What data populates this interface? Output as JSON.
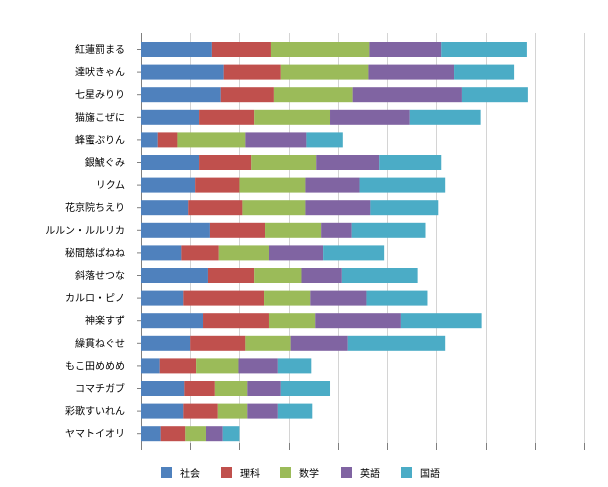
{
  "chart_data": {
    "type": "bar",
    "orientation": "horizontal",
    "stacked": true,
    "categories": [
      "紅蓮罰まる",
      "達吠きゃん",
      "七星みりり",
      "猫旛こぜに",
      "蜂蜜ぷりん",
      "銀鯱ぐみ",
      "リクム",
      "花京院ちえり",
      "ルルン・ルルリカ",
      "秘間慈ぱねね",
      "斜落せつな",
      "カルロ・ピノ",
      "神楽すず",
      "繰貫ねぐせ",
      "もこ田めめめ",
      "コマチガブ",
      "彩歌すいれん",
      "ヤマトイオリ"
    ],
    "series": [
      {
        "name": "社会",
        "color": "#4f81bd",
        "values": [
          72,
          84,
          81,
          59,
          17,
          59,
          55,
          48,
          70,
          41,
          68,
          43,
          63,
          50,
          19,
          44,
          43,
          20
        ]
      },
      {
        "name": "理科",
        "color": "#c0504d",
        "values": [
          60,
          58,
          54,
          56,
          20,
          53,
          45,
          55,
          56,
          38,
          47,
          82,
          67,
          56,
          37,
          31,
          35,
          25
        ]
      },
      {
        "name": "数学",
        "color": "#9bbb59",
        "values": [
          100,
          89,
          80,
          77,
          69,
          66,
          67,
          64,
          57,
          51,
          48,
          47,
          47,
          46,
          43,
          33,
          30,
          21
        ]
      },
      {
        "name": "英語",
        "color": "#8064a2",
        "values": [
          73,
          87,
          111,
          81,
          62,
          64,
          55,
          66,
          31,
          55,
          41,
          57,
          87,
          58,
          40,
          34,
          31,
          17
        ]
      },
      {
        "name": "国語",
        "color": "#4bacc6",
        "values": [
          87,
          61,
          67,
          72,
          37,
          63,
          87,
          69,
          75,
          62,
          77,
          62,
          82,
          99,
          34,
          50,
          35,
          17
        ]
      }
    ],
    "xlim": [
      0,
      450
    ],
    "xticks": [
      0,
      50,
      100,
      150,
      200,
      250,
      300,
      350,
      400,
      450
    ],
    "grid": true,
    "legend": "bottom"
  }
}
